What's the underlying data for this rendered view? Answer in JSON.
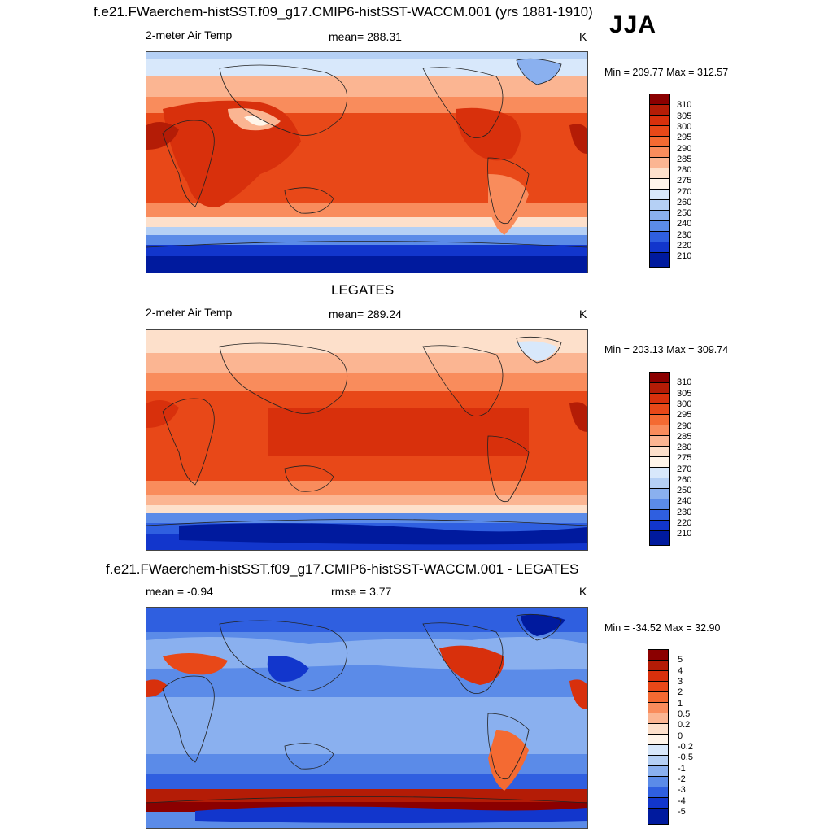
{
  "header": {
    "main_title": "f.e21.FWaerchem-histSST.f09_g17.CMIP6-histSST-WACCM.001 (yrs 1881-1910)",
    "season": "JJA"
  },
  "panels": [
    {
      "id": "model",
      "variable": "2-meter Air Temp",
      "mean_label": "mean= 288.31",
      "units": "K",
      "minmax": "Min = 209.77 Max = 312.57",
      "colorbar_labels": [
        "310",
        "305",
        "300",
        "295",
        "290",
        "285",
        "280",
        "275",
        "270",
        "260",
        "250",
        "240",
        "230",
        "220",
        "210"
      ]
    },
    {
      "id": "obs",
      "title": "LEGATES",
      "variable": "2-meter Air Temp",
      "mean_label": "mean= 289.24",
      "units": "K",
      "minmax": "Min = 203.13 Max = 309.74",
      "colorbar_labels": [
        "310",
        "305",
        "300",
        "295",
        "290",
        "285",
        "280",
        "275",
        "270",
        "260",
        "250",
        "240",
        "230",
        "220",
        "210"
      ]
    },
    {
      "id": "diff",
      "title": "f.e21.FWaerchem-histSST.f09_g17.CMIP6-histSST-WACCM.001 - LEGATES",
      "mean_label": "mean =  -0.94",
      "rmse_label": "rmse =   3.77",
      "units": "K",
      "minmax": "Min = -34.52 Max =  32.90",
      "colorbar_labels": [
        "5",
        "4",
        "3",
        "2",
        "1",
        "0.5",
        "0.2",
        "0",
        "-0.2",
        "-0.5",
        "-1",
        "-2",
        "-3",
        "-4",
        "-5"
      ]
    }
  ],
  "colors": {
    "temp_scale": [
      "#8b0000",
      "#b41c06",
      "#d8300c",
      "#e84818",
      "#f46a32",
      "#f98c5c",
      "#fbb592",
      "#fde0cb",
      "#fff5ea",
      "#d8e8fb",
      "#b5d0f5",
      "#8ab0ef",
      "#5b8be8",
      "#2f5fe0",
      "#1236cc",
      "#001a9e"
    ],
    "diff_scale": [
      "#8b0000",
      "#b41c06",
      "#d8300c",
      "#e84818",
      "#f46a32",
      "#f98c5c",
      "#fbb592",
      "#fde0cb",
      "#fff5ea",
      "#d8e8fb",
      "#b5d0f5",
      "#8ab0ef",
      "#5b8be8",
      "#2f5fe0",
      "#1236cc",
      "#001a9e"
    ]
  }
}
